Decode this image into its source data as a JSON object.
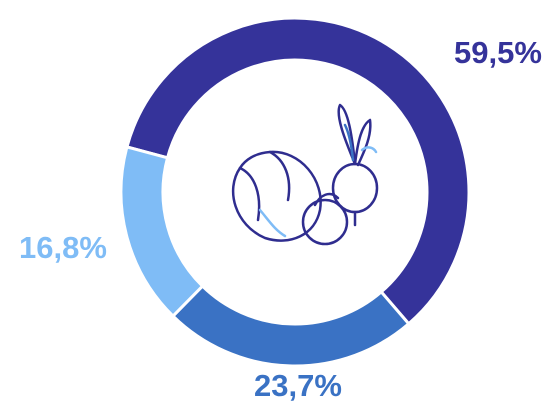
{
  "chart_data": {
    "type": "donut",
    "categories": [
      null,
      null,
      null
    ],
    "values": [
      59.5,
      23.7,
      16.8
    ],
    "value_labels": [
      "59,5%",
      "23,7%",
      "16,8%"
    ],
    "colors": [
      "#35339a",
      "#3a72c4",
      "#7fbcf6"
    ]
  }
}
